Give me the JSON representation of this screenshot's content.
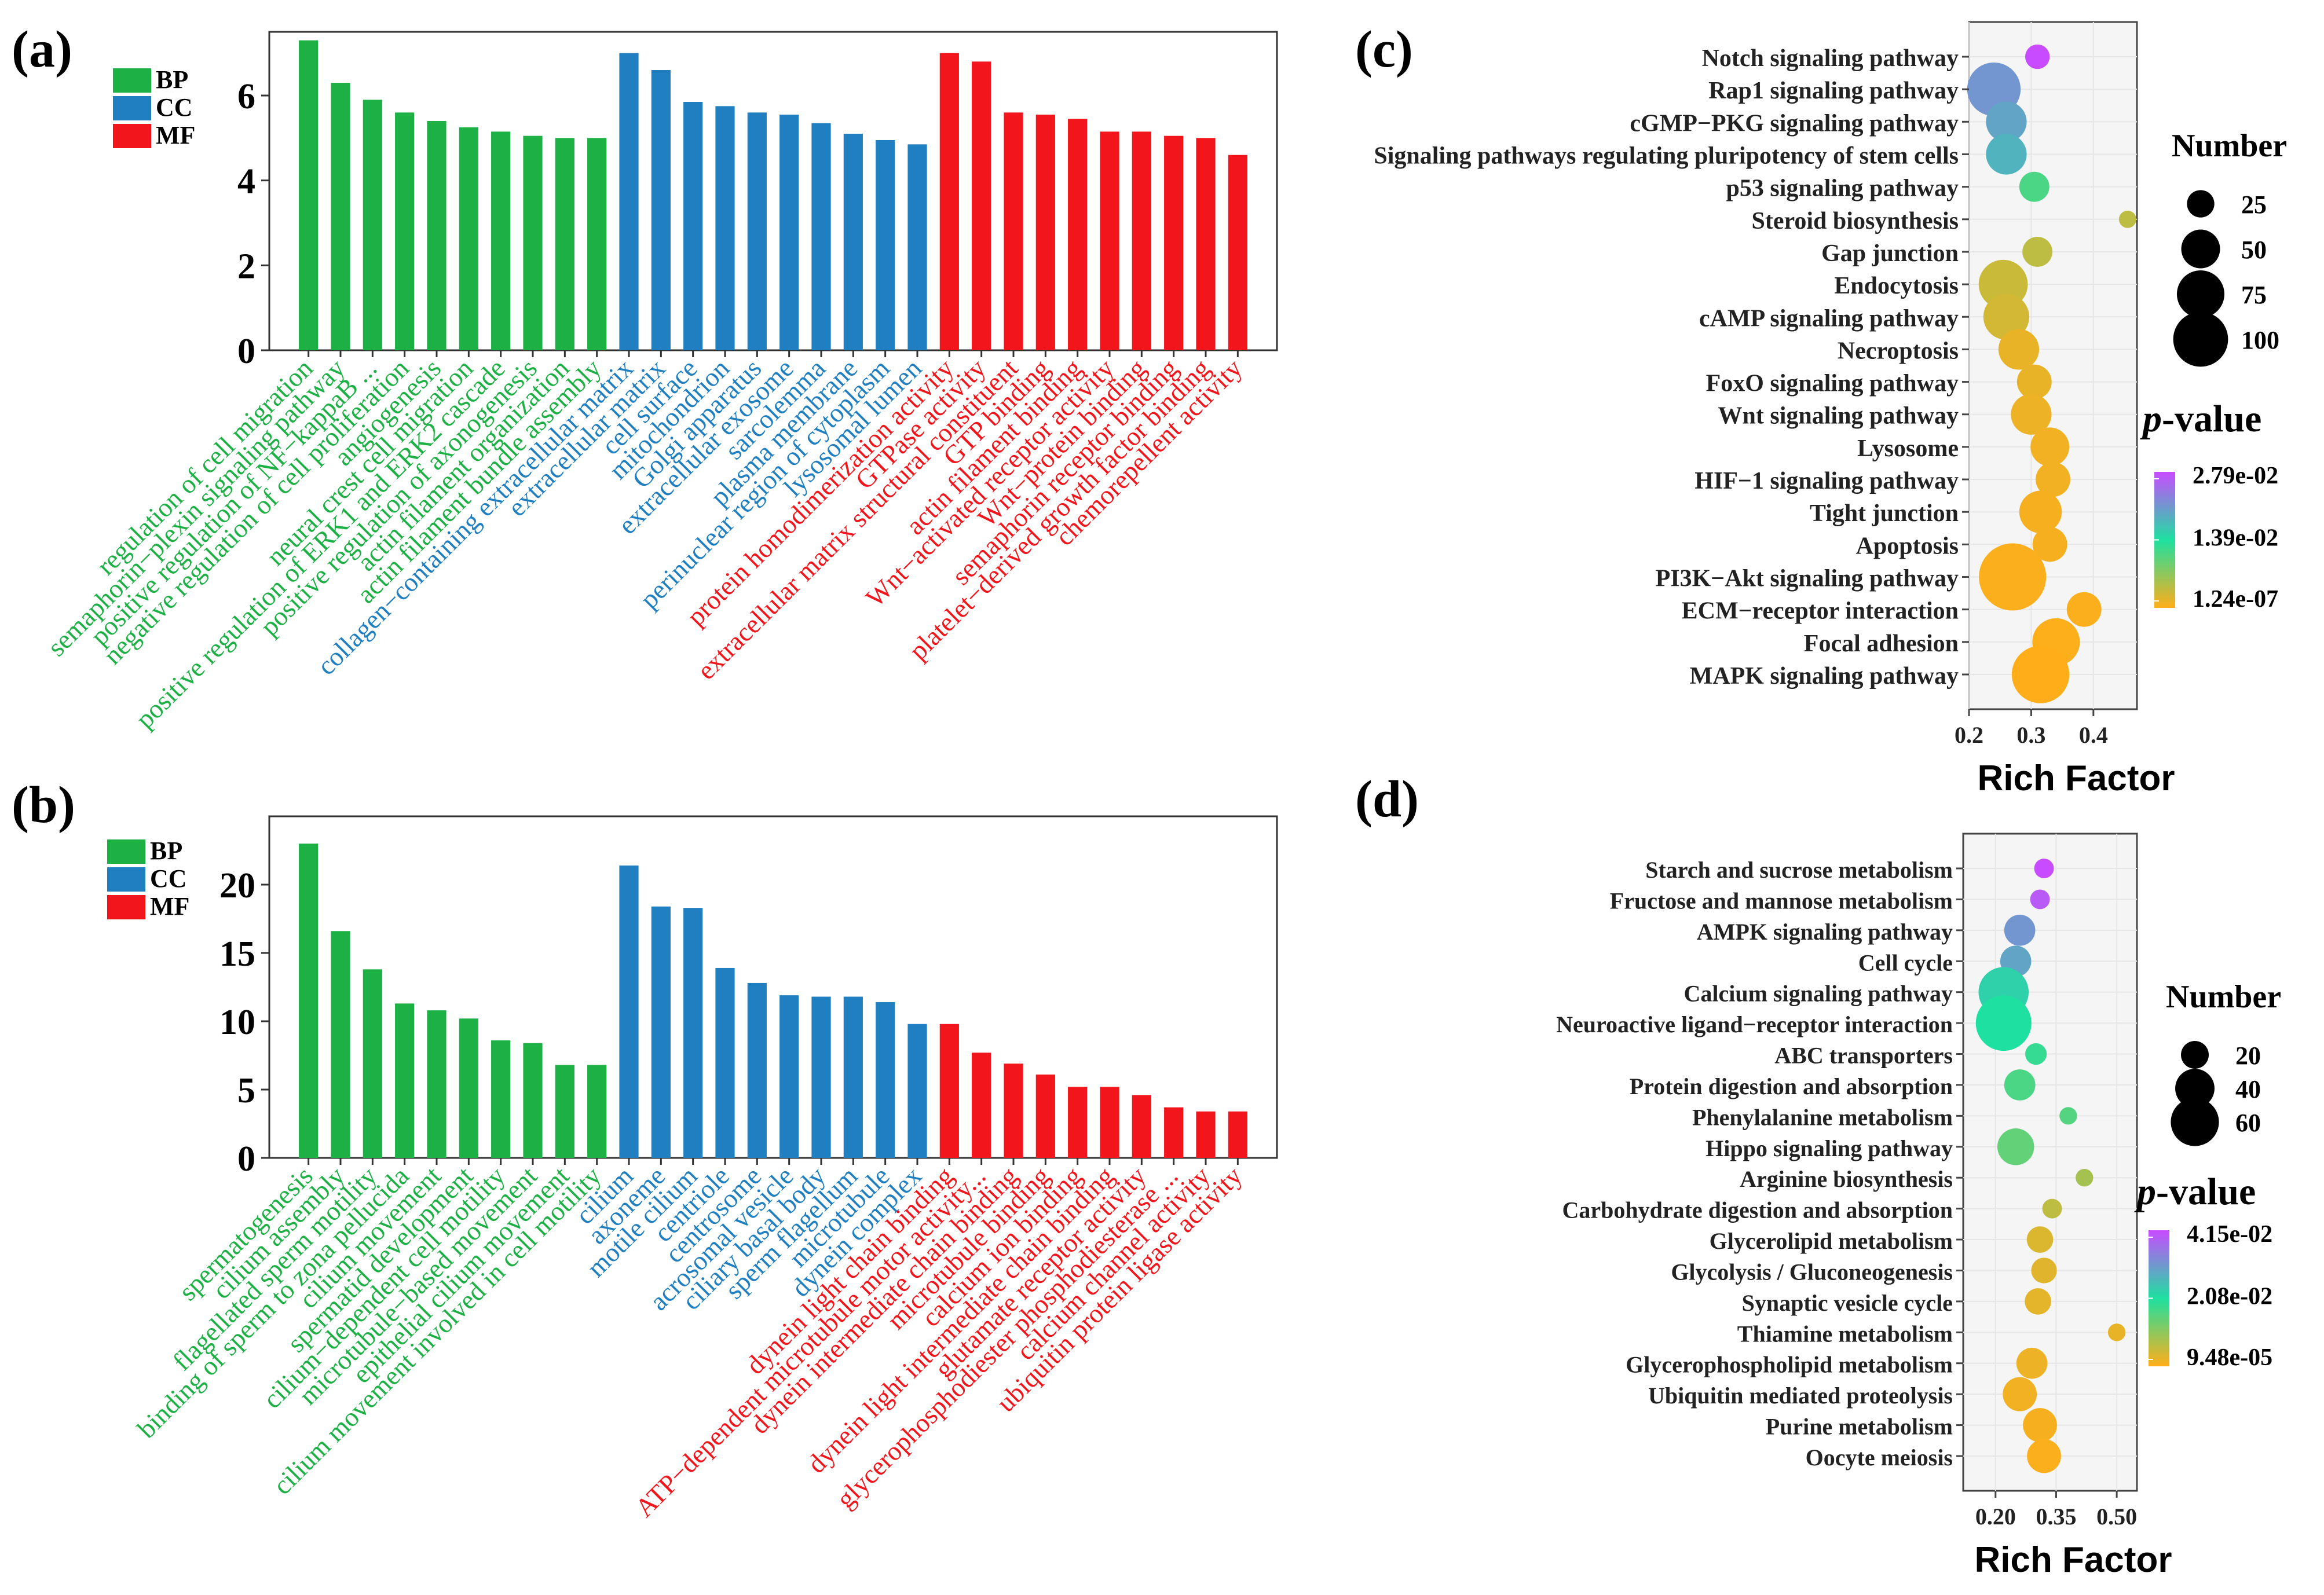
{
  "colors": {
    "BP": "#1db045",
    "CC": "#1f7fc0",
    "MF": "#f2161c",
    "bubbleFill": "#f5f5f5",
    "grid": "#e6e6e6",
    "pmax": "#c84bff",
    "pmid": "#1ee0a0",
    "pmin": "#ffae1a"
  },
  "panels": {
    "a": "(a)",
    "b": "(b)",
    "c": "(c)",
    "d": "(d)"
  },
  "chart_data": [
    {
      "id": "a",
      "type": "bar",
      "legend": [
        "BP",
        "CC",
        "MF"
      ],
      "ylim": [
        0,
        7.5
      ],
      "yticks": [
        0,
        2,
        4,
        6
      ],
      "categories": [
        "regulation of cell migration",
        "semaphorin−plexin signaling pathway",
        "positive regulation of NF−kappaB ...",
        "negative regulation of cell proliferation",
        "angiogenesis",
        "neural crest cell migration",
        "positive regulation of ERK1 and ERK2 cascade",
        "positive regulation of axonogenesis",
        "actin filament organization",
        "actin filament bundle assembly",
        "collagen−containing extracellular matrix",
        "extracellular matrix",
        "cell surface",
        "mitochondrion",
        "Golgi apparatus",
        "extracellular exosome",
        "sarcolemma",
        "plasma membrane",
        "perinuclear region of cytoplasm",
        "lysosomal lumen",
        "protein homodimerization activity",
        "GTPase activity",
        "extracellular matrix structural constituent",
        "GTP binding",
        "actin filament binding",
        "Wnt−activated receptor activity",
        "Wnt−protein binding",
        "semaphorin receptor binding",
        "platelet−derived growth factor binding",
        "chemorepellent activity"
      ],
      "groups": [
        "BP",
        "BP",
        "BP",
        "BP",
        "BP",
        "BP",
        "BP",
        "BP",
        "BP",
        "BP",
        "CC",
        "CC",
        "CC",
        "CC",
        "CC",
        "CC",
        "CC",
        "CC",
        "CC",
        "CC",
        "MF",
        "MF",
        "MF",
        "MF",
        "MF",
        "MF",
        "MF",
        "MF",
        "MF",
        "MF"
      ],
      "values": [
        7.3,
        6.3,
        5.9,
        5.6,
        5.4,
        5.25,
        5.15,
        5.05,
        5.0,
        5.0,
        7.0,
        6.6,
        5.85,
        5.75,
        5.6,
        5.55,
        5.35,
        5.1,
        4.95,
        4.85,
        7.0,
        6.8,
        5.6,
        5.55,
        5.45,
        5.15,
        5.15,
        5.05,
        5.0,
        4.6
      ]
    },
    {
      "id": "b",
      "type": "bar",
      "legend": [
        "BP",
        "CC",
        "MF"
      ],
      "ylim": [
        0,
        25
      ],
      "yticks": [
        0,
        5,
        10,
        15,
        20
      ],
      "categories": [
        "spermatogenesis",
        "cilium assembly",
        "flagellated sperm motility",
        "binding of sperm to zona pellucida",
        "cilium movement",
        "spermatid development",
        "cilium−dependent cell motility",
        "microtubule−based movement",
        "epithelial cilium movement",
        "cilium movement involved in cell motility",
        "cilium",
        "axoneme",
        "motile cilium",
        "centriole",
        "centrosome",
        "acrosomal vesicle",
        "ciliary basal body",
        "sperm flagellum",
        "microtubule",
        "dynein complex",
        "dynein light chain binding",
        "ATP−dependent microtubule motor activity...",
        "dynein intermediate chain binding",
        "microtubule binding",
        "calcium ion binding",
        "dynein light intermediate chain binding",
        "glutamate receptor activity",
        "glycerophosphodiester phosphodiesterase ...",
        "calcium channel activity",
        "ubiquitin protein ligase activity"
      ],
      "groups": [
        "BP",
        "BP",
        "BP",
        "BP",
        "BP",
        "BP",
        "BP",
        "BP",
        "BP",
        "BP",
        "CC",
        "CC",
        "CC",
        "CC",
        "CC",
        "CC",
        "CC",
        "CC",
        "CC",
        "CC",
        "MF",
        "MF",
        "MF",
        "MF",
        "MF",
        "MF",
        "MF",
        "MF",
        "MF",
        "MF"
      ],
      "values": [
        23,
        16.6,
        13.8,
        11.3,
        10.8,
        10.2,
        8.6,
        8.4,
        6.8,
        6.8,
        21.4,
        18.4,
        18.3,
        13.9,
        12.8,
        11.9,
        11.8,
        11.8,
        11.4,
        9.8,
        9.8,
        7.7,
        6.9,
        6.1,
        5.2,
        5.2,
        4.6,
        3.7,
        3.4,
        3.4
      ]
    },
    {
      "id": "c",
      "type": "scatter",
      "xlabel": "Rich Factor",
      "xlim": [
        0.2,
        0.47
      ],
      "xticks": [
        0.2,
        0.3,
        0.4
      ],
      "xtickLabels": [
        "0.2",
        "0.3",
        "0.4"
      ],
      "sizeTitle": "Number",
      "sizeLegend": [
        25,
        50,
        75,
        100
      ],
      "sizeMax": 100,
      "colorTitleP": "p",
      "colorTitleRest": "-value",
      "colorLabels": [
        "2.79e-02",
        "1.39e-02",
        "1.24e-07"
      ],
      "pathways": [
        "Notch signaling pathway",
        "Rap1 signaling pathway",
        "cGMP−PKG signaling pathway",
        "Signaling pathways regulating pluripotency of stem cells",
        "p53 signaling pathway",
        "Steroid biosynthesis",
        "Gap junction",
        "Endocytosis",
        "cAMP signaling pathway",
        "Necroptosis",
        "FoxO signaling pathway",
        "Wnt signaling pathway",
        "Lysosome",
        "HIF−1 signaling pathway",
        "Tight junction",
        "Apoptosis",
        "PI3K−Akt signaling pathway",
        "ECM−receptor interaction",
        "Focal adhesion",
        "MAPK signaling pathway"
      ],
      "richFactor": [
        0.31,
        0.24,
        0.26,
        0.26,
        0.305,
        0.455,
        0.31,
        0.255,
        0.26,
        0.28,
        0.305,
        0.3,
        0.33,
        0.335,
        0.315,
        0.33,
        0.27,
        0.385,
        0.34,
        0.315
      ],
      "count": [
        20,
        95,
        55,
        55,
        30,
        10,
        30,
        80,
        70,
        55,
        40,
        55,
        50,
        40,
        60,
        40,
        150,
        40,
        75,
        110
      ],
      "colorFraction": [
        1.0,
        0.75,
        0.7,
        0.65,
        0.4,
        0.15,
        0.15,
        0.12,
        0.1,
        0.05,
        0.05,
        0.04,
        0.03,
        0.03,
        0.02,
        0.02,
        0.01,
        0.01,
        0.005,
        0.0
      ]
    },
    {
      "id": "d",
      "type": "scatter",
      "xlabel": "Rich Factor",
      "xlim": [
        0.12,
        0.55
      ],
      "xticks": [
        0.2,
        0.35,
        0.5
      ],
      "xtickLabels": [
        "0.20",
        "0.35",
        "0.50"
      ],
      "sizeTitle": "Number",
      "sizeLegend": [
        20,
        40,
        60
      ],
      "sizeMax": 60,
      "colorTitleP": "p",
      "colorTitleRest": "-value",
      "colorLabels": [
        "4.15e-02",
        "2.08e-02",
        "9.48e-05"
      ],
      "pathways": [
        "Starch and sucrose metabolism",
        "Fructose and mannose metabolism",
        "AMPK signaling pathway",
        "Cell cycle",
        "Calcium signaling pathway",
        "Neuroactive ligand−receptor interaction",
        "ABC transporters",
        "Protein digestion and absorption",
        "Phenylalanine metabolism",
        "Hippo signaling pathway",
        "Arginine biosynthesis",
        "Carbohydrate digestion and absorption",
        "Glycerolipid metabolism",
        "Glycolysis / Gluconeogenesis",
        "Synaptic vesicle cycle",
        "Thiamine metabolism",
        "Glycerophospholipid metabolism",
        "Ubiquitin mediated proteolysis",
        "Purine metabolism",
        "Oocyte meiosis"
      ],
      "richFactor": [
        0.32,
        0.31,
        0.26,
        0.25,
        0.22,
        0.22,
        0.3,
        0.26,
        0.38,
        0.25,
        0.42,
        0.34,
        0.31,
        0.32,
        0.305,
        0.5,
        0.29,
        0.26,
        0.31,
        0.32
      ],
      "count": [
        10,
        10,
        25,
        25,
        65,
        80,
        12,
        25,
        8,
        35,
        8,
        10,
        18,
        17,
        18,
        8,
        25,
        30,
        30,
        30
      ],
      "colorFraction": [
        1.0,
        0.95,
        0.75,
        0.7,
        0.55,
        0.5,
        0.45,
        0.4,
        0.38,
        0.35,
        0.2,
        0.15,
        0.08,
        0.07,
        0.06,
        0.05,
        0.04,
        0.03,
        0.02,
        0.01
      ]
    }
  ]
}
